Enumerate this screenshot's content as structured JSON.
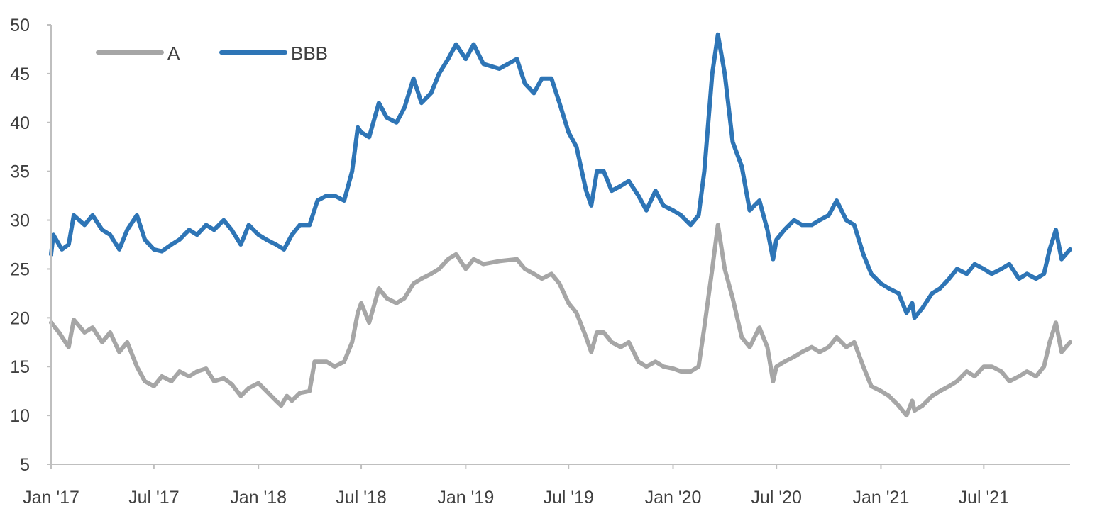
{
  "chart_data": {
    "type": "line",
    "title": "",
    "xlabel": "",
    "ylabel": "",
    "ylim": [
      5,
      50
    ],
    "yticks": [
      5,
      10,
      15,
      20,
      25,
      30,
      35,
      40,
      45,
      50
    ],
    "xlim": [
      "2017-01-01",
      "2021-11-30"
    ],
    "xtick_labels": [
      {
        "date": "2017-01-01",
        "label": "Jan '17"
      },
      {
        "date": "2017-07-01",
        "label": "Jul '17"
      },
      {
        "date": "2018-01-01",
        "label": "Jan '18"
      },
      {
        "date": "2018-07-01",
        "label": "Jul '18"
      },
      {
        "date": "2019-01-01",
        "label": "Jan '19"
      },
      {
        "date": "2019-07-01",
        "label": "Jul '19"
      },
      {
        "date": "2020-01-01",
        "label": "Jan '20"
      },
      {
        "date": "2020-07-01",
        "label": "Jul '20"
      },
      {
        "date": "2021-01-01",
        "label": "Jan '21"
      },
      {
        "date": "2021-07-01",
        "label": "Jul '21"
      }
    ],
    "grid": false,
    "legend_position": "top-left",
    "series": [
      {
        "name": "A",
        "color": "#a6a6a6",
        "points": [
          [
            "2017-01-01",
            19.5
          ],
          [
            "2017-01-15",
            18.5
          ],
          [
            "2017-02-01",
            17.0
          ],
          [
            "2017-02-10",
            19.8
          ],
          [
            "2017-03-01",
            18.5
          ],
          [
            "2017-03-15",
            19.0
          ],
          [
            "2017-04-01",
            17.5
          ],
          [
            "2017-04-15",
            18.5
          ],
          [
            "2017-05-01",
            16.5
          ],
          [
            "2017-05-15",
            17.5
          ],
          [
            "2017-06-01",
            15.0
          ],
          [
            "2017-06-15",
            13.5
          ],
          [
            "2017-07-01",
            13.0
          ],
          [
            "2017-07-15",
            14.0
          ],
          [
            "2017-08-01",
            13.5
          ],
          [
            "2017-08-15",
            14.5
          ],
          [
            "2017-09-01",
            14.0
          ],
          [
            "2017-09-15",
            14.5
          ],
          [
            "2017-10-01",
            14.8
          ],
          [
            "2017-10-15",
            13.5
          ],
          [
            "2017-11-01",
            13.8
          ],
          [
            "2017-11-15",
            13.2
          ],
          [
            "2017-12-01",
            12.0
          ],
          [
            "2017-12-15",
            12.8
          ],
          [
            "2018-01-01",
            13.3
          ],
          [
            "2018-01-15",
            12.5
          ],
          [
            "2018-02-01",
            11.5
          ],
          [
            "2018-02-10",
            11.0
          ],
          [
            "2018-02-20",
            12.0
          ],
          [
            "2018-03-01",
            11.5
          ],
          [
            "2018-03-15",
            12.3
          ],
          [
            "2018-04-01",
            12.5
          ],
          [
            "2018-04-10",
            15.5
          ],
          [
            "2018-05-01",
            15.5
          ],
          [
            "2018-05-15",
            15.0
          ],
          [
            "2018-06-01",
            15.5
          ],
          [
            "2018-06-15",
            17.5
          ],
          [
            "2018-06-25",
            20.5
          ],
          [
            "2018-07-01",
            21.5
          ],
          [
            "2018-07-15",
            19.5
          ],
          [
            "2018-08-01",
            23.0
          ],
          [
            "2018-08-15",
            22.0
          ],
          [
            "2018-09-01",
            21.5
          ],
          [
            "2018-09-15",
            22.0
          ],
          [
            "2018-10-01",
            23.5
          ],
          [
            "2018-10-15",
            24.0
          ],
          [
            "2018-11-01",
            24.5
          ],
          [
            "2018-11-15",
            25.0
          ],
          [
            "2018-12-01",
            26.0
          ],
          [
            "2018-12-15",
            26.5
          ],
          [
            "2019-01-01",
            25.0
          ],
          [
            "2019-01-15",
            26.0
          ],
          [
            "2019-02-01",
            25.5
          ],
          [
            "2019-03-01",
            25.8
          ],
          [
            "2019-04-01",
            26.0
          ],
          [
            "2019-04-15",
            25.0
          ],
          [
            "2019-05-01",
            24.5
          ],
          [
            "2019-05-15",
            24.0
          ],
          [
            "2019-06-01",
            24.5
          ],
          [
            "2019-06-15",
            23.5
          ],
          [
            "2019-07-01",
            21.5
          ],
          [
            "2019-07-15",
            20.5
          ],
          [
            "2019-08-01",
            18.0
          ],
          [
            "2019-08-10",
            16.5
          ],
          [
            "2019-08-20",
            18.5
          ],
          [
            "2019-09-01",
            18.5
          ],
          [
            "2019-09-15",
            17.5
          ],
          [
            "2019-10-01",
            17.0
          ],
          [
            "2019-10-15",
            17.5
          ],
          [
            "2019-11-01",
            15.5
          ],
          [
            "2019-11-15",
            15.0
          ],
          [
            "2019-12-01",
            15.5
          ],
          [
            "2019-12-15",
            15.0
          ],
          [
            "2020-01-01",
            14.8
          ],
          [
            "2020-01-15",
            14.5
          ],
          [
            "2020-02-01",
            14.5
          ],
          [
            "2020-02-15",
            15.0
          ],
          [
            "2020-02-25",
            19.0
          ],
          [
            "2020-03-10",
            25.0
          ],
          [
            "2020-03-20",
            29.5
          ],
          [
            "2020-04-01",
            25.0
          ],
          [
            "2020-04-15",
            22.0
          ],
          [
            "2020-05-01",
            18.0
          ],
          [
            "2020-05-15",
            17.0
          ],
          [
            "2020-06-01",
            19.0
          ],
          [
            "2020-06-15",
            17.0
          ],
          [
            "2020-06-25",
            13.5
          ],
          [
            "2020-07-01",
            15.0
          ],
          [
            "2020-07-15",
            15.5
          ],
          [
            "2020-08-01",
            16.0
          ],
          [
            "2020-08-15",
            16.5
          ],
          [
            "2020-09-01",
            17.0
          ],
          [
            "2020-09-15",
            16.5
          ],
          [
            "2020-10-01",
            17.0
          ],
          [
            "2020-10-15",
            18.0
          ],
          [
            "2020-11-01",
            17.0
          ],
          [
            "2020-11-15",
            17.5
          ],
          [
            "2020-12-01",
            15.0
          ],
          [
            "2020-12-15",
            13.0
          ],
          [
            "2021-01-01",
            12.5
          ],
          [
            "2021-01-15",
            12.0
          ],
          [
            "2021-02-01",
            11.0
          ],
          [
            "2021-02-15",
            10.0
          ],
          [
            "2021-02-25",
            11.5
          ],
          [
            "2021-03-01",
            10.5
          ],
          [
            "2021-03-15",
            11.0
          ],
          [
            "2021-04-01",
            12.0
          ],
          [
            "2021-04-15",
            12.5
          ],
          [
            "2021-05-01",
            13.0
          ],
          [
            "2021-05-15",
            13.5
          ],
          [
            "2021-06-01",
            14.5
          ],
          [
            "2021-06-15",
            14.0
          ],
          [
            "2021-07-01",
            15.0
          ],
          [
            "2021-07-15",
            15.0
          ],
          [
            "2021-08-01",
            14.5
          ],
          [
            "2021-08-15",
            13.5
          ],
          [
            "2021-09-01",
            14.0
          ],
          [
            "2021-09-15",
            14.5
          ],
          [
            "2021-10-01",
            14.0
          ],
          [
            "2021-10-15",
            15.0
          ],
          [
            "2021-10-25",
            17.5
          ],
          [
            "2021-11-05",
            19.5
          ],
          [
            "2021-11-15",
            16.5
          ],
          [
            "2021-11-30",
            17.5
          ]
        ]
      },
      {
        "name": "BBB",
        "color": "#2e75b6",
        "points": [
          [
            "2017-01-01",
            26.5
          ],
          [
            "2017-01-05",
            28.5
          ],
          [
            "2017-01-20",
            27.0
          ],
          [
            "2017-02-01",
            27.5
          ],
          [
            "2017-02-10",
            30.5
          ],
          [
            "2017-03-01",
            29.5
          ],
          [
            "2017-03-15",
            30.5
          ],
          [
            "2017-04-01",
            29.0
          ],
          [
            "2017-04-15",
            28.5
          ],
          [
            "2017-05-01",
            27.0
          ],
          [
            "2017-05-15",
            29.0
          ],
          [
            "2017-06-01",
            30.5
          ],
          [
            "2017-06-15",
            28.0
          ],
          [
            "2017-07-01",
            27.0
          ],
          [
            "2017-07-15",
            26.8
          ],
          [
            "2017-08-01",
            27.5
          ],
          [
            "2017-08-15",
            28.0
          ],
          [
            "2017-09-01",
            29.0
          ],
          [
            "2017-09-15",
            28.5
          ],
          [
            "2017-10-01",
            29.5
          ],
          [
            "2017-10-15",
            29.0
          ],
          [
            "2017-11-01",
            30.0
          ],
          [
            "2017-11-15",
            29.0
          ],
          [
            "2017-12-01",
            27.5
          ],
          [
            "2017-12-15",
            29.5
          ],
          [
            "2018-01-01",
            28.5
          ],
          [
            "2018-01-15",
            28.0
          ],
          [
            "2018-02-01",
            27.5
          ],
          [
            "2018-02-15",
            27.0
          ],
          [
            "2018-03-01",
            28.5
          ],
          [
            "2018-03-15",
            29.5
          ],
          [
            "2018-04-01",
            29.5
          ],
          [
            "2018-04-15",
            32.0
          ],
          [
            "2018-05-01",
            32.5
          ],
          [
            "2018-05-15",
            32.5
          ],
          [
            "2018-06-01",
            32.0
          ],
          [
            "2018-06-15",
            35.0
          ],
          [
            "2018-06-25",
            39.5
          ],
          [
            "2018-07-01",
            39.0
          ],
          [
            "2018-07-15",
            38.5
          ],
          [
            "2018-08-01",
            42.0
          ],
          [
            "2018-08-15",
            40.5
          ],
          [
            "2018-09-01",
            40.0
          ],
          [
            "2018-09-15",
            41.5
          ],
          [
            "2018-10-01",
            44.5
          ],
          [
            "2018-10-15",
            42.0
          ],
          [
            "2018-11-01",
            43.0
          ],
          [
            "2018-11-15",
            45.0
          ],
          [
            "2018-12-01",
            46.5
          ],
          [
            "2018-12-15",
            48.0
          ],
          [
            "2019-01-01",
            46.5
          ],
          [
            "2019-01-15",
            48.0
          ],
          [
            "2019-02-01",
            46.0
          ],
          [
            "2019-03-01",
            45.5
          ],
          [
            "2019-04-01",
            46.5
          ],
          [
            "2019-04-15",
            44.0
          ],
          [
            "2019-05-01",
            43.0
          ],
          [
            "2019-05-15",
            44.5
          ],
          [
            "2019-06-01",
            44.5
          ],
          [
            "2019-06-15",
            42.0
          ],
          [
            "2019-07-01",
            39.0
          ],
          [
            "2019-07-15",
            37.5
          ],
          [
            "2019-08-01",
            33.0
          ],
          [
            "2019-08-10",
            31.5
          ],
          [
            "2019-08-20",
            35.0
          ],
          [
            "2019-09-01",
            35.0
          ],
          [
            "2019-09-15",
            33.0
          ],
          [
            "2019-10-01",
            33.5
          ],
          [
            "2019-10-15",
            34.0
          ],
          [
            "2019-11-01",
            32.5
          ],
          [
            "2019-11-15",
            31.0
          ],
          [
            "2019-12-01",
            33.0
          ],
          [
            "2019-12-15",
            31.5
          ],
          [
            "2020-01-01",
            31.0
          ],
          [
            "2020-01-15",
            30.5
          ],
          [
            "2020-02-01",
            29.5
          ],
          [
            "2020-02-15",
            30.5
          ],
          [
            "2020-02-25",
            35.0
          ],
          [
            "2020-03-10",
            45.0
          ],
          [
            "2020-03-20",
            49.0
          ],
          [
            "2020-04-01",
            45.0
          ],
          [
            "2020-04-15",
            38.0
          ],
          [
            "2020-05-01",
            35.5
          ],
          [
            "2020-05-15",
            31.0
          ],
          [
            "2020-06-01",
            32.0
          ],
          [
            "2020-06-15",
            29.0
          ],
          [
            "2020-06-25",
            26.0
          ],
          [
            "2020-07-01",
            28.0
          ],
          [
            "2020-07-15",
            29.0
          ],
          [
            "2020-08-01",
            30.0
          ],
          [
            "2020-08-15",
            29.5
          ],
          [
            "2020-09-01",
            29.5
          ],
          [
            "2020-09-15",
            30.0
          ],
          [
            "2020-10-01",
            30.5
          ],
          [
            "2020-10-15",
            32.0
          ],
          [
            "2020-11-01",
            30.0
          ],
          [
            "2020-11-15",
            29.5
          ],
          [
            "2020-12-01",
            26.5
          ],
          [
            "2020-12-15",
            24.5
          ],
          [
            "2021-01-01",
            23.5
          ],
          [
            "2021-01-15",
            23.0
          ],
          [
            "2021-02-01",
            22.5
          ],
          [
            "2021-02-15",
            20.5
          ],
          [
            "2021-02-25",
            21.5
          ],
          [
            "2021-03-01",
            20.0
          ],
          [
            "2021-03-15",
            21.0
          ],
          [
            "2021-04-01",
            22.5
          ],
          [
            "2021-04-15",
            23.0
          ],
          [
            "2021-05-01",
            24.0
          ],
          [
            "2021-05-15",
            25.0
          ],
          [
            "2021-06-01",
            24.5
          ],
          [
            "2021-06-15",
            25.5
          ],
          [
            "2021-07-01",
            25.0
          ],
          [
            "2021-07-15",
            24.5
          ],
          [
            "2021-08-01",
            25.0
          ],
          [
            "2021-08-15",
            25.5
          ],
          [
            "2021-09-01",
            24.0
          ],
          [
            "2021-09-15",
            24.5
          ],
          [
            "2021-10-01",
            24.0
          ],
          [
            "2021-10-15",
            24.5
          ],
          [
            "2021-10-25",
            27.0
          ],
          [
            "2021-11-05",
            29.0
          ],
          [
            "2021-11-15",
            26.0
          ],
          [
            "2021-11-30",
            27.0
          ]
        ]
      }
    ]
  }
}
